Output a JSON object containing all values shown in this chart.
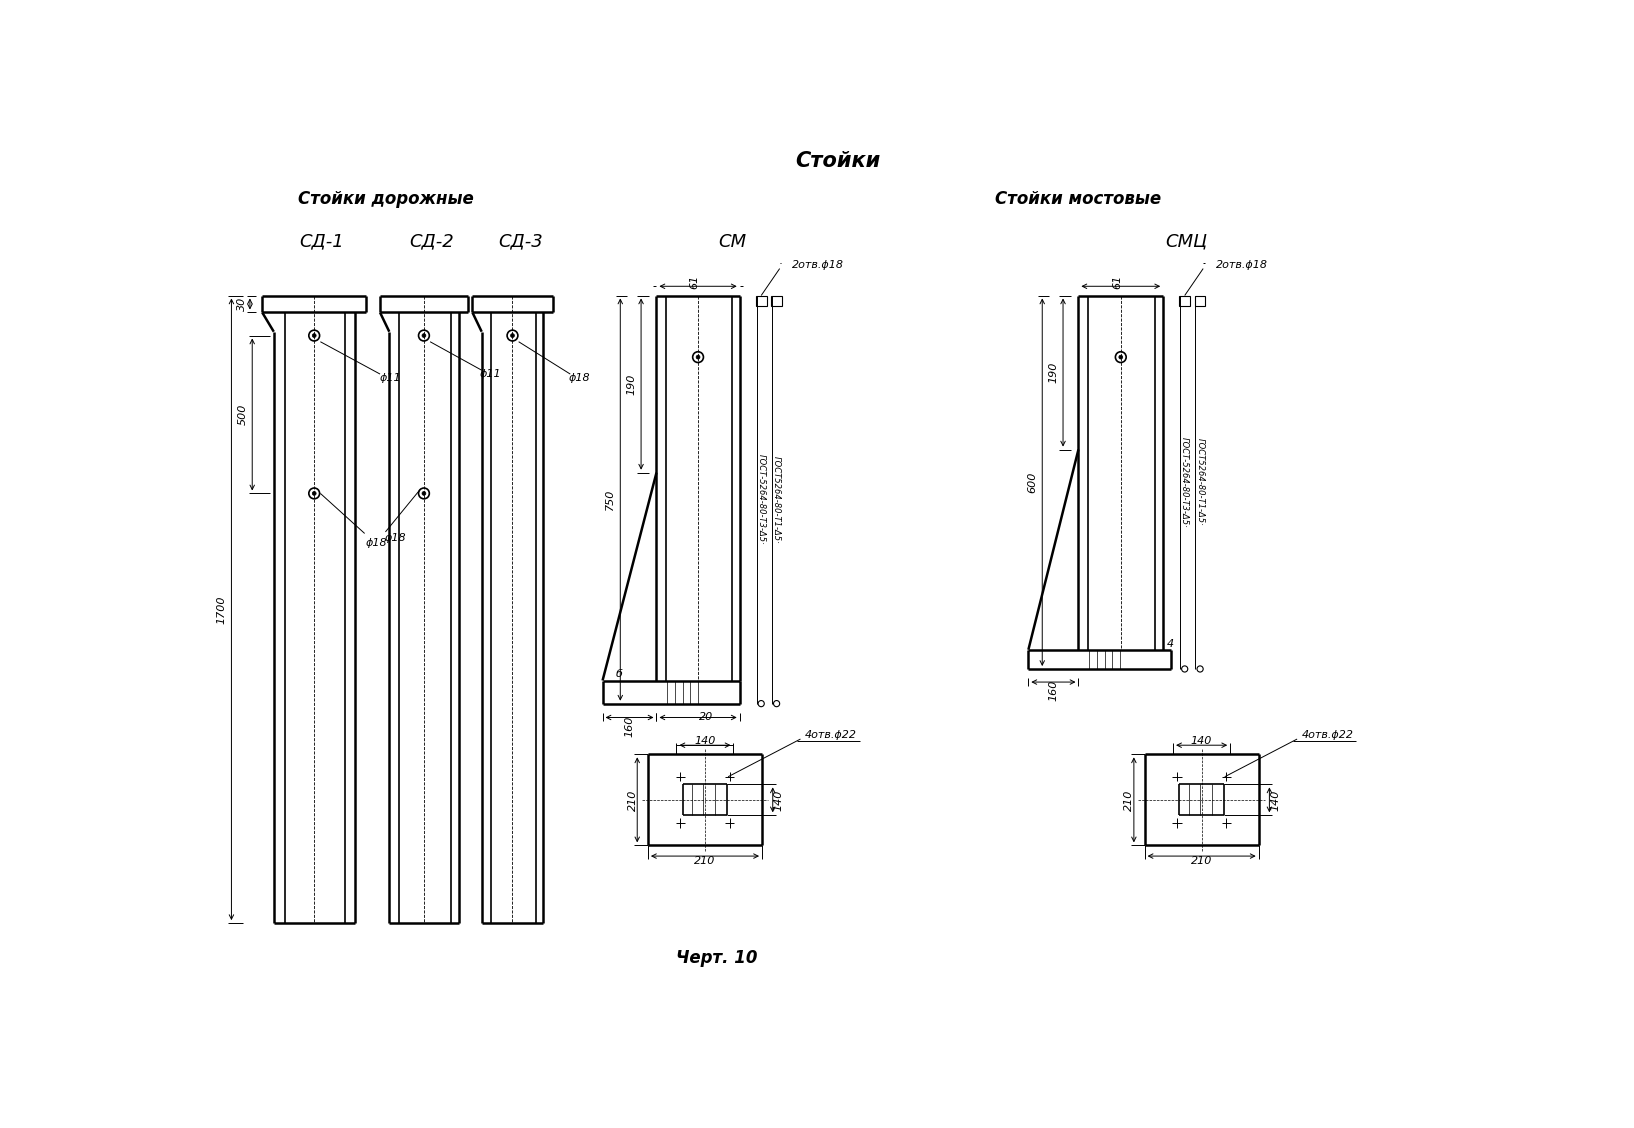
{
  "title": "Стойки",
  "subtitle_left": "Стойки дорожные",
  "subtitle_right": "Стойки мостовые",
  "caption": "Черт. 10",
  "bg_color": "#ffffff",
  "line_color": "#000000",
  "labels": {
    "sd1": "СД-1",
    "sd2": "СД-2",
    "sd3": "СД-3",
    "sm": "СМ",
    "smc": "СМЦ"
  },
  "dims": {
    "d30": "30",
    "d500": "500",
    "d1700": "1700",
    "phi11": "ϕ11",
    "phi18": "ϕ18",
    "d61": "61",
    "d190": "190",
    "d750": "750",
    "d600": "600",
    "d160": "160",
    "d20": "20",
    "db": "б",
    "d4": "4",
    "d140": "140",
    "d210": "210",
    "2otv_phi18": "2отв.ϕ18",
    "4otv_phi22": "4отв.ϕ22",
    "gost_t3": "ГОСТ-5264-80-Т3-Δ5·",
    "gost_t1": "ГОСТ5264-80-Т1-Δ5·"
  }
}
